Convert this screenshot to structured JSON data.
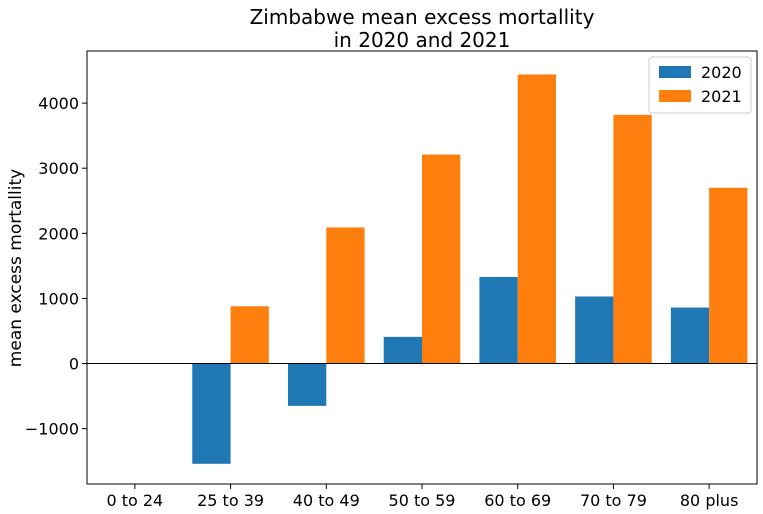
{
  "chart_data": {
    "type": "bar",
    "title": "Zimbabwe mean excess mortallity\nin 2020 and 2021",
    "xlabel": "",
    "ylabel": "mean excess mortallity",
    "categories": [
      "0 to 24",
      "25 to 39",
      "40 to 49",
      "50 to 59",
      "60 to 69",
      "70 to 79",
      "80 plus"
    ],
    "series": [
      {
        "name": "2020",
        "color": "#1f77b4",
        "values": [
          0,
          -1540,
          -650,
          410,
          1330,
          1030,
          860
        ]
      },
      {
        "name": "2021",
        "color": "#ff7f0e",
        "values": [
          0,
          880,
          2090,
          3210,
          4440,
          3820,
          2700
        ]
      }
    ],
    "ylim": [
      -1850,
      4800
    ],
    "yticks": [
      -1000,
      0,
      1000,
      2000,
      3000,
      4000
    ],
    "ytick_labels": [
      "−1000",
      "0",
      "1000",
      "2000",
      "3000",
      "4000"
    ],
    "legend": "top-right",
    "grid": false,
    "zero_line": true
  }
}
